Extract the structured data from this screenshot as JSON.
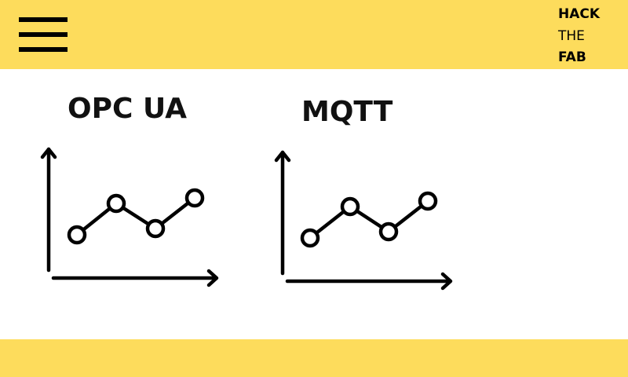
{
  "header": {
    "logo": {
      "line1": "HACK",
      "line2": "THE",
      "line3": "FAB"
    },
    "menu_icon": "hamburger-menu-icon"
  },
  "cards": [
    {
      "title": "OPC UA",
      "icon": "line-chart-icon"
    },
    {
      "title": "MQTT",
      "icon": "line-chart-icon"
    }
  ],
  "colors": {
    "accent": "#fddc5c",
    "foreground": "#000000",
    "background": "#ffffff"
  }
}
